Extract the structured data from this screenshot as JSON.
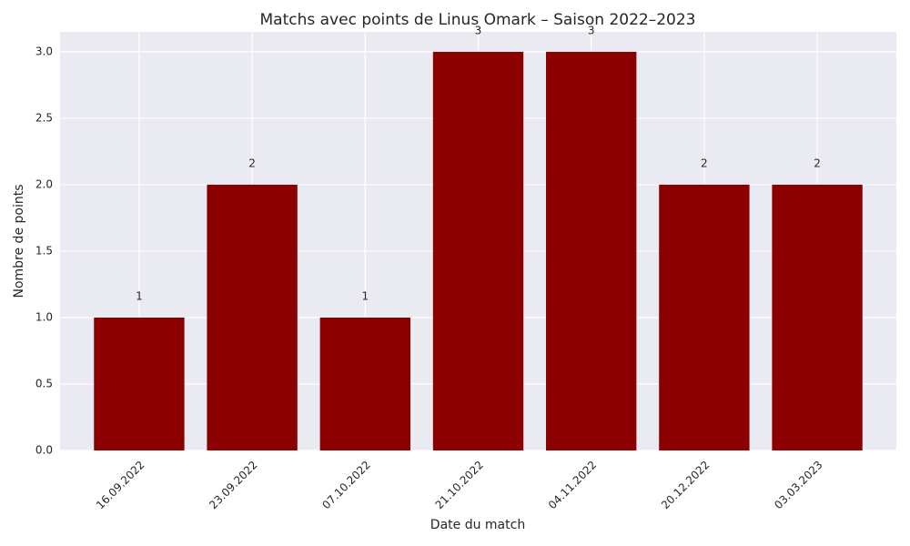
{
  "chart_data": {
    "type": "bar",
    "title": "Matchs avec points de Linus Omark – Saison 2022–2023",
    "x_label": "Date du match",
    "y_label": "Nombre de points",
    "categories": [
      "16.09.2022",
      "23.09.2022",
      "07.10.2022",
      "21.10.2022",
      "04.11.2022",
      "20.12.2022",
      "03.03.2023"
    ],
    "values": [
      1,
      2,
      1,
      3,
      3,
      2,
      2
    ],
    "color": "#8b0000",
    "ylim": [
      0,
      3.15
    ],
    "yticks": [
      {
        "value": 0,
        "label": "0.0"
      },
      0.5,
      {
        "value": 1,
        "label": "1.0"
      },
      1.5,
      {
        "value": 2,
        "label": "2.0"
      },
      2.5,
      {
        "value": 3,
        "label": "3.0"
      }
    ],
    "grid": true
  }
}
